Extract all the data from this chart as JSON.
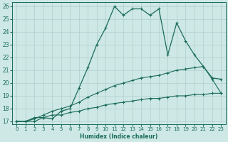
{
  "xlabel": "Humidex (Indice chaleur)",
  "background_color": "#cde8e5",
  "line_color": "#1a6b5a",
  "grid_color": "#b0cfcc",
  "xlim": [
    -0.5,
    23.5
  ],
  "ylim": [
    16.8,
    26.3
  ],
  "xticks": [
    0,
    1,
    2,
    3,
    4,
    5,
    6,
    7,
    8,
    9,
    10,
    11,
    12,
    13,
    14,
    15,
    16,
    17,
    18,
    19,
    20,
    21,
    22,
    23
  ],
  "yticks": [
    17,
    18,
    19,
    20,
    21,
    22,
    23,
    24,
    25,
    26
  ],
  "series": [
    {
      "x": [
        0,
        1,
        2,
        3,
        4,
        5,
        6,
        7,
        8,
        9,
        10,
        11,
        12,
        13,
        14,
        15,
        16,
        17,
        18,
        19,
        20,
        21,
        22,
        23
      ],
      "y": [
        17.0,
        17.0,
        17.0,
        17.3,
        17.5,
        17.5,
        17.7,
        17.8,
        18.0,
        18.1,
        18.3,
        18.4,
        18.5,
        18.6,
        18.7,
        18.8,
        18.8,
        18.9,
        19.0,
        19.0,
        19.1,
        19.1,
        19.2,
        19.2
      ],
      "marker": "+",
      "markersize": 3,
      "linewidth": 0.8
    },
    {
      "x": [
        0,
        1,
        2,
        3,
        4,
        5,
        6,
        7,
        8,
        9,
        10,
        11,
        12,
        13,
        14,
        15,
        16,
        17,
        18,
        19,
        20,
        21,
        22,
        23
      ],
      "y": [
        17.0,
        17.0,
        17.2,
        17.5,
        17.8,
        18.0,
        18.2,
        18.5,
        18.9,
        19.2,
        19.5,
        19.8,
        20.0,
        20.2,
        20.4,
        20.5,
        20.6,
        20.8,
        21.0,
        21.1,
        21.2,
        21.3,
        20.3,
        19.2
      ],
      "marker": "+",
      "markersize": 3,
      "linewidth": 0.8
    },
    {
      "x": [
        0,
        1,
        2,
        3,
        4,
        5,
        6,
        7,
        8,
        9,
        10,
        11,
        12,
        13,
        14,
        15,
        16,
        17,
        18,
        19,
        20,
        21,
        22,
        23
      ],
      "y": [
        17.0,
        17.0,
        17.3,
        17.3,
        17.2,
        17.8,
        18.0,
        19.6,
        21.2,
        23.0,
        24.3,
        26.0,
        25.3,
        25.8,
        25.8,
        25.3,
        25.8,
        22.2,
        24.7,
        23.3,
        22.2,
        21.3,
        20.4,
        20.3
      ],
      "marker": "+",
      "markersize": 3.5,
      "linewidth": 0.9
    }
  ]
}
